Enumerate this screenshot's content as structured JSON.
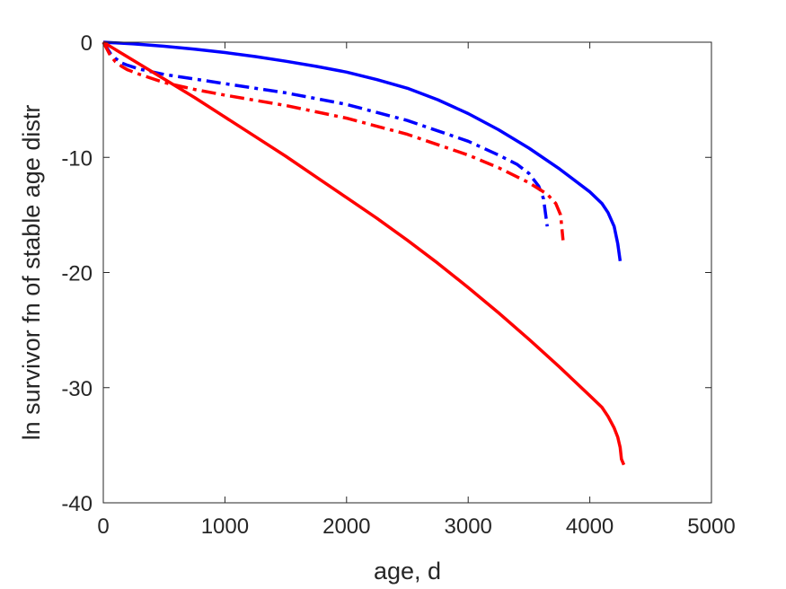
{
  "chart_data": {
    "type": "line",
    "title": "",
    "xlabel": "age, d",
    "ylabel": "ln survivor fn of stable age distr",
    "xlim": [
      0,
      5000
    ],
    "ylim": [
      -40,
      0
    ],
    "xticks": [
      0,
      1000,
      2000,
      3000,
      4000,
      5000
    ],
    "yticks": [
      0,
      -10,
      -20,
      -30,
      -40
    ],
    "xtick_labels": [
      "0",
      "1000",
      "2000",
      "3000",
      "4000",
      "5000"
    ],
    "ytick_labels": [
      "0",
      "-10",
      "-20",
      "-30",
      "-40"
    ],
    "grid": false,
    "legend": "none",
    "series": [
      {
        "color": "#0000ff",
        "style": "solid",
        "x": [
          0,
          250,
          500,
          750,
          1000,
          1250,
          1500,
          1750,
          2000,
          2250,
          2500,
          2750,
          3000,
          3250,
          3500,
          3750,
          4000,
          4100,
          4150,
          4200,
          4230,
          4250
        ],
        "y": [
          0,
          -0.15,
          -0.35,
          -0.6,
          -0.9,
          -1.25,
          -1.65,
          -2.1,
          -2.6,
          -3.25,
          -4.0,
          -5.0,
          -6.2,
          -7.6,
          -9.2,
          -11.0,
          -13.0,
          -14.0,
          -14.8,
          -16.0,
          -17.5,
          -19.0
        ]
      },
      {
        "color": "#0000ff",
        "style": "dashdot",
        "x": [
          0,
          30,
          60,
          100,
          150,
          200,
          300,
          500,
          750,
          1000,
          1500,
          2000,
          2500,
          3000,
          3250,
          3400,
          3500,
          3580,
          3620,
          3650
        ],
        "y": [
          0,
          -0.5,
          -1.0,
          -1.4,
          -1.8,
          -2.0,
          -2.35,
          -2.8,
          -3.2,
          -3.6,
          -4.4,
          -5.4,
          -6.8,
          -8.6,
          -9.8,
          -10.6,
          -11.4,
          -12.5,
          -13.6,
          -16.0
        ]
      },
      {
        "color": "#ff0000",
        "style": "dashdot",
        "x": [
          0,
          30,
          60,
          100,
          150,
          200,
          300,
          500,
          750,
          1000,
          1500,
          2000,
          2500,
          3000,
          3250,
          3500,
          3650,
          3720,
          3760,
          3780
        ],
        "y": [
          0,
          -0.6,
          -1.2,
          -1.7,
          -2.1,
          -2.4,
          -2.8,
          -3.5,
          -4.1,
          -4.6,
          -5.5,
          -6.6,
          -8.0,
          -9.8,
          -10.9,
          -12.2,
          -13.2,
          -14.0,
          -15.0,
          -17.2
        ]
      },
      {
        "color": "#ff0000",
        "style": "solid",
        "x": [
          0,
          250,
          500,
          750,
          1000,
          1250,
          1500,
          1750,
          2000,
          2250,
          2500,
          2750,
          3000,
          3250,
          3500,
          3750,
          4000,
          4100,
          4150,
          4200,
          4230,
          4250,
          4260,
          4280
        ],
        "y": [
          0,
          -1.6,
          -3.2,
          -4.8,
          -6.5,
          -8.2,
          -9.9,
          -11.7,
          -13.5,
          -15.3,
          -17.2,
          -19.2,
          -21.3,
          -23.5,
          -25.8,
          -28.2,
          -30.7,
          -31.7,
          -32.5,
          -33.5,
          -34.3,
          -35.2,
          -36.2,
          -36.7
        ]
      }
    ]
  }
}
